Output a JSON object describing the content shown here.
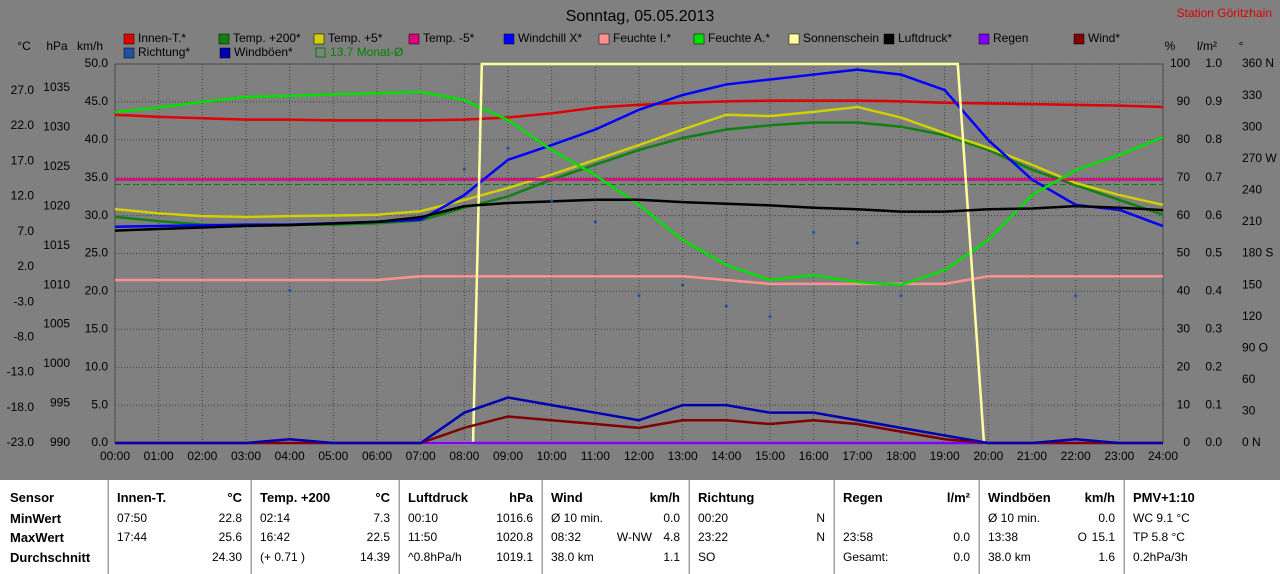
{
  "chart_data": {
    "type": "line",
    "title": "Sonntag, 05.05.2013",
    "station": "Station Göritzhain",
    "x": [
      0,
      1,
      2,
      3,
      4,
      5,
      6,
      7,
      8,
      9,
      10,
      11,
      12,
      13,
      14,
      15,
      16,
      17,
      18,
      19,
      20,
      21,
      22,
      23,
      24
    ],
    "xlim": [
      0,
      24
    ],
    "xticks": [
      {
        "value": 0,
        "label": "00:00"
      },
      {
        "value": 1,
        "label": "01:00"
      },
      {
        "value": 2,
        "label": "02:00"
      },
      {
        "value": 3,
        "label": "03:00"
      },
      {
        "value": 4,
        "label": "04:00"
      },
      {
        "value": 5,
        "label": "05:00"
      },
      {
        "value": 6,
        "label": "06:00"
      },
      {
        "value": 7,
        "label": "07:00"
      },
      {
        "value": 8,
        "label": "08:00"
      },
      {
        "value": 9,
        "label": "09:00"
      },
      {
        "value": 10,
        "label": "10:00"
      },
      {
        "value": 11,
        "label": "11:00"
      },
      {
        "value": 12,
        "label": "12:00"
      },
      {
        "value": 13,
        "label": "13:00"
      },
      {
        "value": 14,
        "label": "14:00"
      },
      {
        "value": 15,
        "label": "15:00"
      },
      {
        "value": 16,
        "label": "16:00"
      },
      {
        "value": 17,
        "label": "17:00"
      },
      {
        "value": 18,
        "label": "18:00"
      },
      {
        "value": 19,
        "label": "19:00"
      },
      {
        "value": 20,
        "label": "20:00"
      },
      {
        "value": 21,
        "label": "21:00"
      },
      {
        "value": 22,
        "label": "22:00"
      },
      {
        "value": 23,
        "label": "23:00"
      },
      {
        "value": 24,
        "label": "24:00"
      }
    ],
    "grid": true,
    "ylabel": "km/h",
    "ylim": [
      0,
      50
    ],
    "yticks": [
      {
        "value": 0,
        "label": "0.0"
      },
      {
        "value": 5,
        "label": "5.0"
      },
      {
        "value": 10,
        "label": "10.0"
      },
      {
        "value": 15,
        "label": "15.0"
      },
      {
        "value": 20,
        "label": "20.0"
      },
      {
        "value": 25,
        "label": "25.0"
      },
      {
        "value": 30,
        "label": "30.0"
      },
      {
        "value": 35,
        "label": "35.0"
      },
      {
        "value": 40,
        "label": "40.0"
      },
      {
        "value": 45,
        "label": "45.0"
      },
      {
        "value": 50,
        "label": "50.0"
      }
    ],
    "y2label": "%",
    "y2lim": [
      0,
      100
    ],
    "y2ticks": [
      0,
      10,
      20,
      30,
      40,
      50,
      60,
      70,
      80,
      90,
      100
    ],
    "y3label": "°C",
    "y3lim": [
      -23,
      30.8
    ],
    "y3ticks": [
      {
        "value": -23,
        "label": "-23.0"
      },
      {
        "value": -18,
        "label": "-18.0"
      },
      {
        "value": -13,
        "label": "-13.0"
      },
      {
        "value": -8,
        "label": "-8.0"
      },
      {
        "value": -3,
        "label": "-3.0"
      },
      {
        "value": 2,
        "label": "2.0"
      },
      {
        "value": 7,
        "label": "7.0"
      },
      {
        "value": 12,
        "label": "12.0"
      },
      {
        "value": 17,
        "label": "17.0"
      },
      {
        "value": 22,
        "label": "22.0"
      },
      {
        "value": 27,
        "label": "27.0"
      }
    ],
    "y4label": "hPa",
    "y4lim": [
      990,
      1038
    ],
    "y4ticks": [
      990,
      995,
      1000,
      1005,
      1010,
      1015,
      1020,
      1025,
      1030,
      1035
    ],
    "y5label": "l/m²",
    "y5lim": [
      0,
      1
    ],
    "y5ticks": [
      {
        "value": 0,
        "label": "0.0"
      },
      {
        "value": 0.1,
        "label": "0.1"
      },
      {
        "value": 0.2,
        "label": "0.2"
      },
      {
        "value": 0.3,
        "label": "0.3"
      },
      {
        "value": 0.4,
        "label": "0.4"
      },
      {
        "value": 0.5,
        "label": "0.5"
      },
      {
        "value": 0.6,
        "label": "0.6"
      },
      {
        "value": 0.7,
        "label": "0.7"
      },
      {
        "value": 0.8,
        "label": "0.8"
      },
      {
        "value": 0.9,
        "label": "0.9"
      },
      {
        "value": 1,
        "label": "1.0"
      }
    ],
    "y6label": "°",
    "y6lim": [
      0,
      360
    ],
    "y6ticks": [
      {
        "value": 0,
        "label": "0 N"
      },
      30,
      60,
      {
        "value": 90,
        "label": "90 O"
      },
      120,
      150,
      {
        "value": 180,
        "label": "180 S"
      },
      210,
      240,
      {
        "value": 270,
        "label": "270 W"
      },
      300,
      330,
      {
        "value": 360,
        "label": "360 N"
      }
    ],
    "series": [
      {
        "name": "Innen-T.*",
        "color": "#e00000",
        "axis": "y3",
        "values": [
          23.6,
          23.3,
          23.1,
          22.9,
          22.9,
          22.8,
          22.8,
          22.8,
          22.9,
          23.2,
          23.8,
          24.6,
          25.0,
          25.3,
          25.5,
          25.6,
          25.6,
          25.6,
          25.5,
          25.3,
          25.2,
          25.1,
          25.0,
          24.9,
          24.7
        ]
      },
      {
        "name": "Temp. +200*",
        "color": "#108010",
        "axis": "y3",
        "values": [
          9.1,
          8.5,
          8.0,
          7.8,
          8.0,
          8.0,
          8.2,
          8.6,
          10.4,
          12.0,
          14.4,
          16.5,
          18.6,
          20.3,
          21.5,
          22.1,
          22.5,
          22.5,
          21.9,
          20.7,
          18.6,
          15.8,
          13.6,
          11.5,
          9.4
        ]
      },
      {
        "name": "Temp. +5*",
        "color": "#d0d000",
        "axis": "y3",
        "values": [
          10.2,
          9.6,
          9.2,
          9.1,
          9.2,
          9.3,
          9.4,
          9.9,
          11.5,
          13.2,
          15.1,
          17.2,
          19.3,
          21.5,
          23.6,
          23.4,
          24.0,
          24.7,
          23.2,
          21.0,
          18.9,
          16.5,
          13.9,
          12.2,
          10.8
        ]
      },
      {
        "name": "Temp. -5*",
        "color": "#e0007f",
        "axis": "y3",
        "values": [
          14.4,
          14.4,
          14.4,
          14.4,
          14.4,
          14.4,
          14.4,
          14.4,
          14.4,
          14.4,
          14.4,
          14.4,
          14.4,
          14.4,
          14.4,
          14.4,
          14.4,
          14.4,
          14.4,
          14.4,
          14.4,
          14.4,
          14.4,
          14.4,
          14.4
        ]
      },
      {
        "name": "Windchill X*",
        "color": "#0000ff",
        "axis": "y3",
        "values": [
          7.7,
          7.8,
          7.9,
          8.0,
          8.0,
          8.2,
          8.4,
          8.7,
          12.2,
          17.2,
          19.3,
          21.5,
          24.3,
          26.4,
          27.9,
          28.6,
          29.3,
          30.0,
          29.3,
          27.1,
          20.0,
          14.4,
          10.8,
          10.1,
          7.8
        ]
      },
      {
        "name": "Feuchte I.*",
        "color": "#ff9090",
        "axis": "y2",
        "values": [
          43,
          43,
          43,
          43,
          43,
          43,
          43,
          44,
          44,
          44,
          44,
          44,
          44,
          44,
          43,
          42,
          42,
          42,
          42,
          42,
          44,
          44,
          44,
          44,
          44
        ]
      },
      {
        "name": "Feuchte A.*",
        "color": "#00e000",
        "axis": "y2",
        "values": [
          87.3,
          88.5,
          90.0,
          91.3,
          91.6,
          92.0,
          92.3,
          92.6,
          90.5,
          85.2,
          77.3,
          70.7,
          62.8,
          53.6,
          47.0,
          43.0,
          44.3,
          42.5,
          41.7,
          45.6,
          53.6,
          65.4,
          72.0,
          76.0,
          80.7
        ]
      },
      {
        "name": "Sonnenschein",
        "color": "#ffffa0",
        "axis": "y2",
        "x": [
          0,
          8.2,
          8.4,
          19.3,
          19.9,
          24
        ],
        "values": [
          0,
          0,
          100,
          100,
          0,
          0
        ]
      },
      {
        "name": "Luftdruck*",
        "color": "#000000",
        "axis": "y4",
        "values": [
          1016.9,
          1017.1,
          1017.3,
          1017.5,
          1017.6,
          1017.8,
          1018.0,
          1018.6,
          1020.0,
          1020.4,
          1020.6,
          1020.8,
          1020.8,
          1020.5,
          1020.3,
          1020.1,
          1019.8,
          1019.6,
          1019.3,
          1019.3,
          1019.6,
          1019.7,
          1020.0,
          1019.8,
          1019.5
        ]
      },
      {
        "name": "Regen",
        "color": "#8000ff",
        "axis": "y5",
        "values": [
          0,
          0,
          0,
          0,
          0,
          0,
          0,
          0,
          0,
          0,
          0,
          0,
          0,
          0,
          0,
          0,
          0,
          0,
          0,
          0,
          0,
          0,
          0,
          0,
          0
        ]
      },
      {
        "name": "Wind*",
        "color": "#800000",
        "axis": "y",
        "values": [
          0,
          0,
          0,
          0,
          0,
          0,
          0,
          0,
          2,
          3.5,
          3,
          2.5,
          2,
          3,
          3,
          2.5,
          3,
          2.5,
          1.5,
          0.5,
          0,
          0,
          0,
          0,
          0
        ]
      },
      {
        "name": "Richtung*",
        "color": "#2050a0",
        "axis": "y6",
        "style": "dots",
        "values": [
          null,
          null,
          null,
          null,
          145,
          null,
          null,
          null,
          260,
          280,
          230,
          210,
          140,
          150,
          130,
          120,
          200,
          190,
          140,
          null,
          null,
          null,
          140,
          null,
          null
        ]
      },
      {
        "name": "Windböen*",
        "color": "#0000b0",
        "axis": "y",
        "values": [
          0,
          0,
          0,
          0,
          0.5,
          0,
          0,
          0,
          4,
          6,
          5,
          4,
          3,
          5,
          5,
          4,
          4,
          3,
          2,
          1,
          0,
          0,
          0.5,
          0,
          0
        ]
      }
    ],
    "reference_line": {
      "name": "13.7 Monat-Ø",
      "value": 13.7,
      "axis": "y3",
      "color": "#008000"
    }
  },
  "table": {
    "row_labels": [
      "Sensor",
      "MinWert",
      "MaxWert",
      "Durchschnitt"
    ],
    "panels": [
      {
        "name": "Innen-T.",
        "unit": "°C",
        "rows": [
          [
            "07:50",
            "22.8"
          ],
          [
            "17:44",
            "25.6"
          ],
          [
            "24.30"
          ]
        ]
      },
      {
        "name": "Temp. +200",
        "unit": "°C",
        "rows": [
          [
            "02:14",
            "7.3"
          ],
          [
            "16:42",
            "22.5"
          ],
          [
            "(+ 0.71 )",
            "14.39"
          ]
        ]
      },
      {
        "name": "Luftdruck",
        "unit": "hPa",
        "rows": [
          [
            "00:10",
            "1016.6"
          ],
          [
            "11:50",
            "1020.8"
          ],
          [
            "^0.8hPa/h",
            "1019.1"
          ]
        ]
      },
      {
        "name": "Wind",
        "unit": "km/h",
        "rows": [
          [
            "Ø 10 min.",
            "0.0"
          ],
          [
            "08:32",
            "W-NW",
            "4.8"
          ],
          [
            "38.0 km",
            "1.1"
          ]
        ]
      },
      {
        "name": "Richtung",
        "rows": [
          [
            "00:20",
            "N"
          ],
          [
            "23:22",
            "N"
          ],
          [
            "SO"
          ]
        ]
      },
      {
        "name": "Regen",
        "unit": "l/m²",
        "rows": [
          [],
          [
            "23:58",
            "0.0"
          ],
          [
            "Gesamt:",
            "0.0"
          ]
        ]
      },
      {
        "name": "Windböen",
        "unit": "km/h",
        "rows": [
          [
            "Ø 10 min.",
            "0.0"
          ],
          [
            "13:38",
            "O",
            "15.1"
          ],
          [
            "38.0 km",
            "1.6"
          ]
        ]
      },
      {
        "name": "PMV+1:10",
        "rows": [
          [
            "WC 9.1 °C"
          ],
          [
            "TP 5.8 °C"
          ],
          [
            "0.2hPa/3h"
          ]
        ]
      }
    ]
  }
}
